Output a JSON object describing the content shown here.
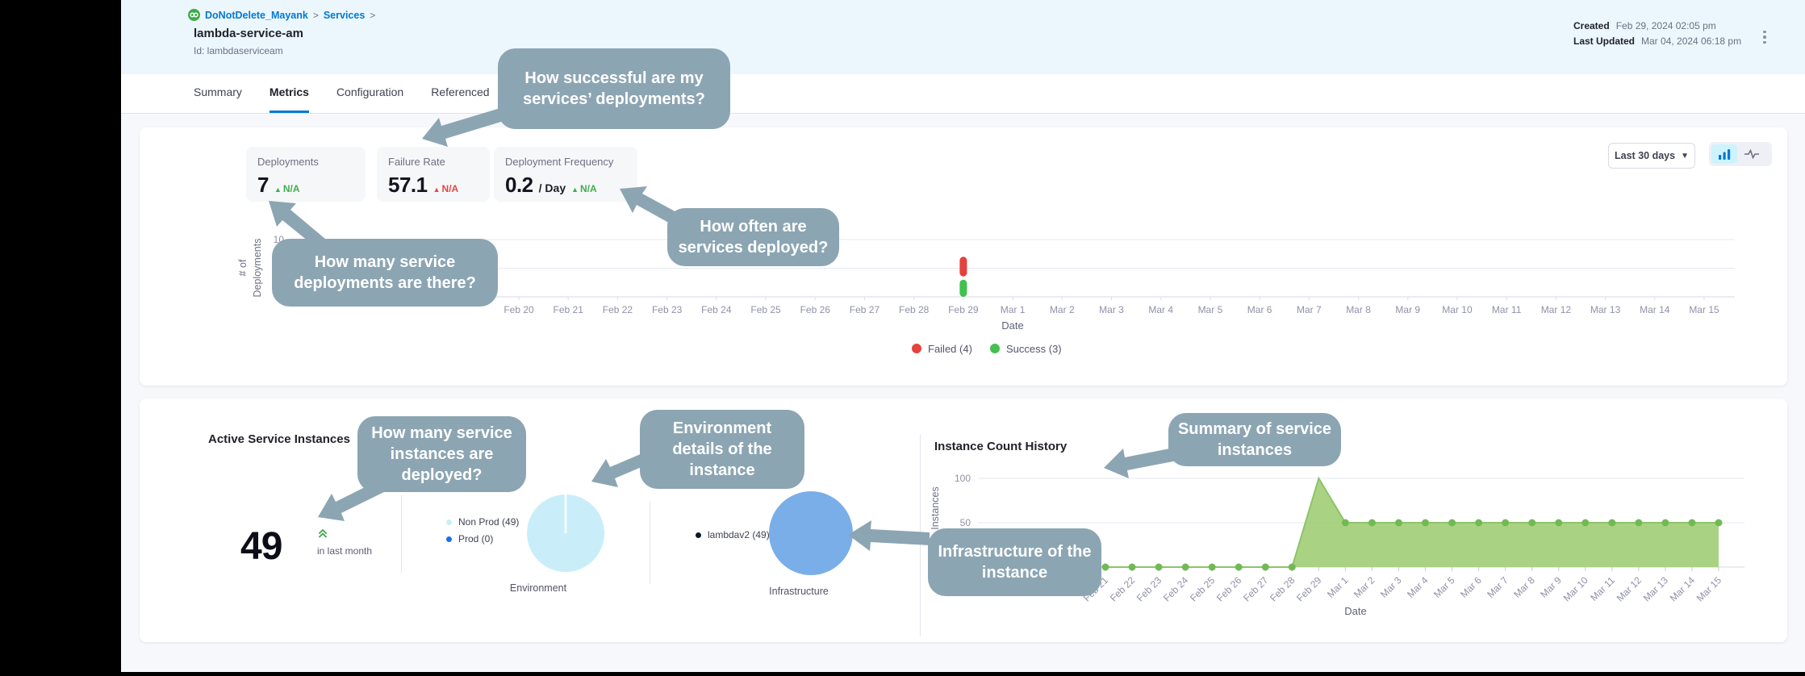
{
  "breadcrumb": {
    "project": "DoNotDelete_Mayank",
    "section": "Services",
    "separator": ">"
  },
  "header": {
    "title": "lambda-service-am",
    "id_line": "Id: lambdaserviceam",
    "created_label": "Created",
    "created_value": "Feb 29, 2024 02:05 pm",
    "updated_label": "Last Updated",
    "updated_value": "Mar 04, 2024 06:18 pm"
  },
  "tabs": [
    {
      "label": "Summary",
      "active": false
    },
    {
      "label": "Metrics",
      "active": true
    },
    {
      "label": "Configuration",
      "active": false
    },
    {
      "label": "Referenced",
      "active": false
    }
  ],
  "filters": {
    "range": "Last 30 days"
  },
  "metrics": {
    "tiles": [
      {
        "label": "Deployments",
        "value": "7",
        "suffix": "",
        "trend": "N/A",
        "trend_color": "#3eaf4c"
      },
      {
        "label": "Failure Rate",
        "value": "57.1",
        "suffix": "",
        "trend": "N/A",
        "trend_color": "#e14840"
      },
      {
        "label": "Deployment Frequency",
        "value": "0.2",
        "suffix": "/ Day",
        "trend": "N/A",
        "trend_color": "#3eaf4c"
      }
    ]
  },
  "instances": {
    "title": "Active Service Instances",
    "count": "49",
    "subtitle": "in last month"
  },
  "callouts": [
    {
      "text": "How successful are my services’ deployments?"
    },
    {
      "text": "How many service deployments are there?"
    },
    {
      "text": "How often are services deployed?"
    },
    {
      "text": "How many service instances are deployed?"
    },
    {
      "text": "Environment details of the instance"
    },
    {
      "text": "Summary of service instances"
    },
    {
      "text": "Infrastructure of the instance"
    }
  ],
  "chart_data": [
    {
      "type": "bar",
      "stacked": true,
      "title": "Deployments by date",
      "categories": [
        "Feb 20",
        "Feb 21",
        "Feb 22",
        "Feb 23",
        "Feb 24",
        "Feb 25",
        "Feb 26",
        "Feb 27",
        "Feb 28",
        "Feb 29",
        "Mar 1",
        "Mar 2",
        "Mar 3",
        "Mar 4",
        "Mar 5",
        "Mar 6",
        "Mar 7",
        "Mar 8",
        "Mar 9",
        "Mar 10",
        "Mar 11",
        "Mar 12",
        "Mar 13",
        "Mar 14",
        "Mar 15"
      ],
      "series": [
        {
          "name": "Failed",
          "color": "#e3433c",
          "values": [
            0,
            0,
            0,
            0,
            0,
            0,
            0,
            0,
            0,
            4,
            0,
            0,
            0,
            0,
            0,
            0,
            0,
            0,
            0,
            0,
            0,
            0,
            0,
            0,
            0
          ]
        },
        {
          "name": "Success",
          "color": "#43c04f",
          "values": [
            0,
            0,
            0,
            0,
            0,
            0,
            0,
            0,
            0,
            3,
            0,
            0,
            0,
            0,
            0,
            0,
            0,
            0,
            0,
            0,
            0,
            0,
            0,
            0,
            0
          ]
        }
      ],
      "legend": [
        "Failed (4)",
        "Success (3)"
      ],
      "xlabel": "Date",
      "ylabel": "# of Deployments",
      "yticks": [
        0,
        5,
        10
      ],
      "ylim": [
        0,
        10
      ],
      "grid": true,
      "legend_position": "bottom"
    },
    {
      "type": "area",
      "title": "Instance Count History",
      "x": [
        "Feb 21",
        "Feb 22",
        "Feb 23",
        "Feb 24",
        "Feb 25",
        "Feb 26",
        "Feb 27",
        "Feb 28",
        "Feb 29",
        "Mar 1",
        "Mar 2",
        "Mar 3",
        "Mar 4",
        "Mar 5",
        "Mar 6",
        "Mar 7",
        "Mar 8",
        "Mar 9",
        "Mar 10",
        "Mar 11",
        "Mar 12",
        "Mar 13",
        "Mar 14",
        "Mar 15"
      ],
      "values": [
        0,
        0,
        0,
        0,
        0,
        0,
        0,
        0,
        100,
        50,
        50,
        50,
        50,
        50,
        50,
        50,
        50,
        50,
        50,
        50,
        50,
        50,
        50,
        50
      ],
      "color": "#a5d17e",
      "line_color": "#8cc468",
      "dot_color": "#72b956",
      "xlabel": "Date",
      "ylabel": "Instances",
      "yticks": [
        0,
        50,
        100
      ],
      "ylim": [
        0,
        100
      ],
      "grid": true
    },
    {
      "type": "pie",
      "title": "Environment",
      "slices": [
        {
          "label": "Non Prod (49)",
          "value": 49,
          "color": "#c9eefa"
        },
        {
          "label": "Prod (0)",
          "value": 0,
          "color": "#1a6ef0"
        }
      ]
    },
    {
      "type": "pie",
      "title": "Infrastructure",
      "slices": [
        {
          "label": "lambdav2 (49)",
          "value": 49,
          "color": "#79aee8"
        }
      ]
    }
  ]
}
